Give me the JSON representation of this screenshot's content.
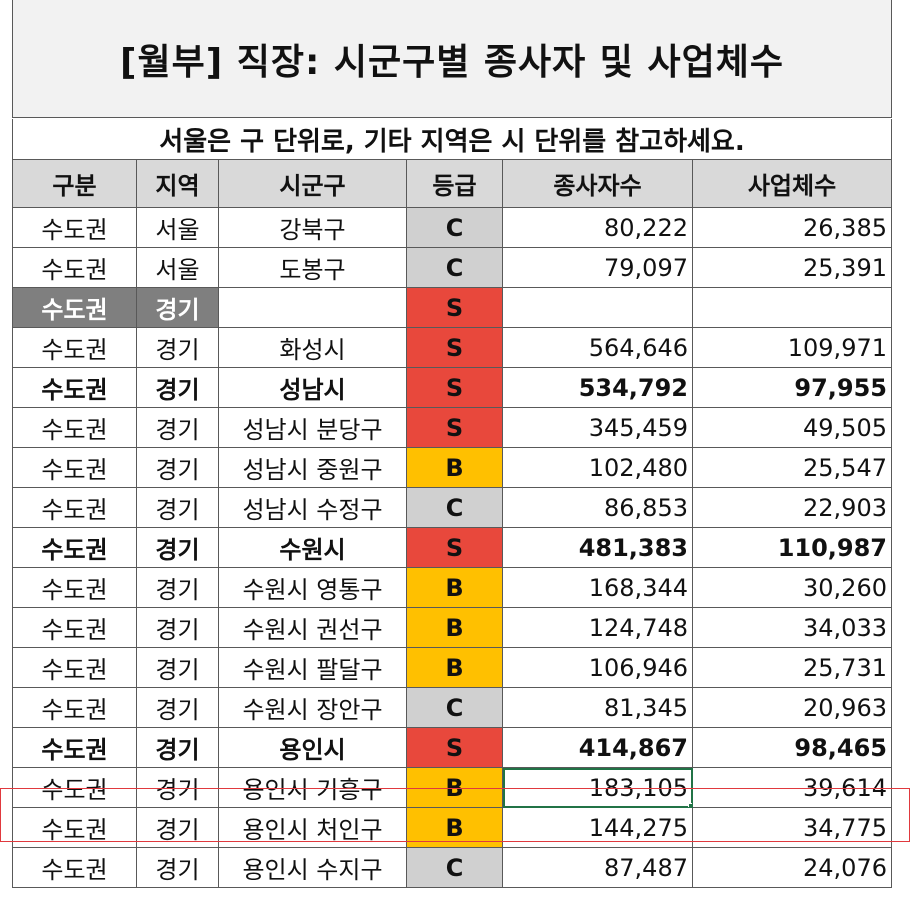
{
  "title": "[월부] 직장: 시군구별 종사자 및 사업체수",
  "subtitle": "서울은 구 단위로, 기타 지역은 시 단위를 참고하세요.",
  "headers": [
    "구분",
    "지역",
    "시군구",
    "등급",
    "종사자수",
    "사업체수"
  ],
  "colors": {
    "grade_S": "#e8483c",
    "grade_B": "#ffc000",
    "grade_C": "#d0d0d0",
    "selection": "#217346",
    "highlight": "#e0393e"
  },
  "rows": [
    {
      "area": "수도권",
      "region": "서울",
      "district": "강북구",
      "grade": "C",
      "workers": "80,222",
      "businesses": "26,385",
      "style": "normal"
    },
    {
      "area": "수도권",
      "region": "서울",
      "district": "도봉구",
      "grade": "C",
      "workers": "79,097",
      "businesses": "25,391",
      "style": "normal"
    },
    {
      "area": "수도권",
      "region": "경기",
      "district": "",
      "grade": "S",
      "workers": "",
      "businesses": "",
      "style": "group"
    },
    {
      "area": "수도권",
      "region": "경기",
      "district": "화성시",
      "grade": "S",
      "workers": "564,646",
      "businesses": "109,971",
      "style": "normal"
    },
    {
      "area": "수도권",
      "region": "경기",
      "district": "성남시",
      "grade": "S",
      "workers": "534,792",
      "businesses": "97,955",
      "style": "bold"
    },
    {
      "area": "수도권",
      "region": "경기",
      "district": "성남시 분당구",
      "grade": "S",
      "workers": "345,459",
      "businesses": "49,505",
      "style": "normal"
    },
    {
      "area": "수도권",
      "region": "경기",
      "district": "성남시 중원구",
      "grade": "B",
      "workers": "102,480",
      "businesses": "25,547",
      "style": "normal"
    },
    {
      "area": "수도권",
      "region": "경기",
      "district": "성남시 수정구",
      "grade": "C",
      "workers": "86,853",
      "businesses": "22,903",
      "style": "normal"
    },
    {
      "area": "수도권",
      "region": "경기",
      "district": "수원시",
      "grade": "S",
      "workers": "481,383",
      "businesses": "110,987",
      "style": "bold"
    },
    {
      "area": "수도권",
      "region": "경기",
      "district": "수원시 영통구",
      "grade": "B",
      "workers": "168,344",
      "businesses": "30,260",
      "style": "normal"
    },
    {
      "area": "수도권",
      "region": "경기",
      "district": "수원시 권선구",
      "grade": "B",
      "workers": "124,748",
      "businesses": "34,033",
      "style": "normal"
    },
    {
      "area": "수도권",
      "region": "경기",
      "district": "수원시 팔달구",
      "grade": "B",
      "workers": "106,946",
      "businesses": "25,731",
      "style": "normal"
    },
    {
      "area": "수도권",
      "region": "경기",
      "district": "수원시 장안구",
      "grade": "C",
      "workers": "81,345",
      "businesses": "20,963",
      "style": "normal"
    },
    {
      "area": "수도권",
      "region": "경기",
      "district": "용인시",
      "grade": "S",
      "workers": "414,867",
      "businesses": "98,465",
      "style": "bold"
    },
    {
      "area": "수도권",
      "region": "경기",
      "district": "용인시 기흥구",
      "grade": "B",
      "workers": "183,105",
      "businesses": "39,614",
      "style": "selected"
    },
    {
      "area": "수도권",
      "region": "경기",
      "district": "용인시 처인구",
      "grade": "B",
      "workers": "144,275",
      "businesses": "34,775",
      "style": "normal"
    },
    {
      "area": "수도권",
      "region": "경기",
      "district": "용인시 수지구",
      "grade": "C",
      "workers": "87,487",
      "businesses": "24,076",
      "style": "normal"
    }
  ]
}
